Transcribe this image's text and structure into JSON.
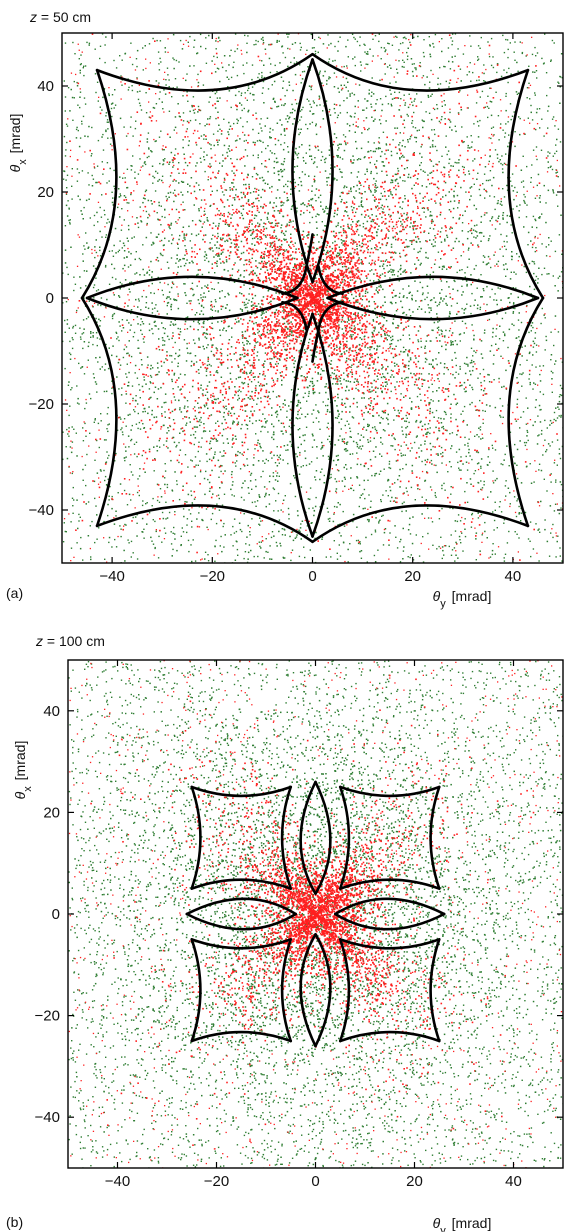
{
  "figure": {
    "panels": [
      {
        "tag": "(a)",
        "title_prefix": "z",
        "title_rest": " = 50 cm"
      },
      {
        "tag": "(b)",
        "title_prefix": "z",
        "title_rest": " = 100 cm"
      }
    ]
  },
  "colors": {
    "green": "#2e7d32",
    "red": "#ff2020",
    "caustic": "#000000",
    "frame": "#000000"
  },
  "chart_data": [
    {
      "type": "scatter",
      "title": "z = 50 cm",
      "panel_label": "(a)",
      "xlabel": "θy [mrad]",
      "ylabel": "θx [mrad]",
      "xlim": [
        -50,
        50
      ],
      "ylim": [
        -50,
        50
      ],
      "xticks": [
        -40,
        -20,
        0,
        20,
        40
      ],
      "yticks": [
        -40,
        -20,
        0,
        20,
        40
      ],
      "grid": false,
      "series": [
        {
          "color": "green",
          "marker": "point"
        },
        {
          "color": "red",
          "marker": "point"
        },
        {
          "color": "black",
          "marker": "point"
        }
      ],
      "caustic": {
        "outer_corners": [
          [
            -43,
            43
          ],
          [
            43,
            43
          ],
          [
            43,
            -43
          ],
          [
            -43,
            -43
          ]
        ],
        "cross_tips": [
          [
            0,
            46
          ],
          [
            46,
            0
          ],
          [
            0,
            -46
          ],
          [
            -46,
            0
          ]
        ],
        "petal_extent": [
          3,
          45
        ]
      }
    },
    {
      "type": "scatter",
      "title": "z = 100 cm",
      "panel_label": "(b)",
      "xlabel": "θy [mrad]",
      "ylabel": "θx [mrad]",
      "xlim": [
        -50,
        50
      ],
      "ylim": [
        -50,
        50
      ],
      "xticks": [
        -40,
        -20,
        0,
        20,
        40
      ],
      "yticks": [
        -40,
        -20,
        0,
        20,
        40
      ],
      "grid": false,
      "series": [
        {
          "color": "green",
          "marker": "point"
        },
        {
          "color": "red",
          "marker": "point"
        },
        {
          "color": "black",
          "marker": "point"
        }
      ],
      "caustic": {
        "quadrant_cells": [
          {
            "corners": [
              [
                -25,
                25
              ],
              [
                -5,
                25
              ],
              [
                -5,
                5
              ],
              [
                -25,
                5
              ]
            ]
          },
          {
            "corners": [
              [
                5,
                25
              ],
              [
                25,
                25
              ],
              [
                25,
                5
              ],
              [
                5,
                5
              ]
            ]
          },
          {
            "corners": [
              [
                5,
                -5
              ],
              [
                25,
                -5
              ],
              [
                25,
                -25
              ],
              [
                5,
                -25
              ]
            ]
          },
          {
            "corners": [
              [
                -25,
                -5
              ],
              [
                -5,
                -5
              ],
              [
                -5,
                -25
              ],
              [
                -25,
                -25
              ]
            ]
          }
        ]
      }
    }
  ]
}
